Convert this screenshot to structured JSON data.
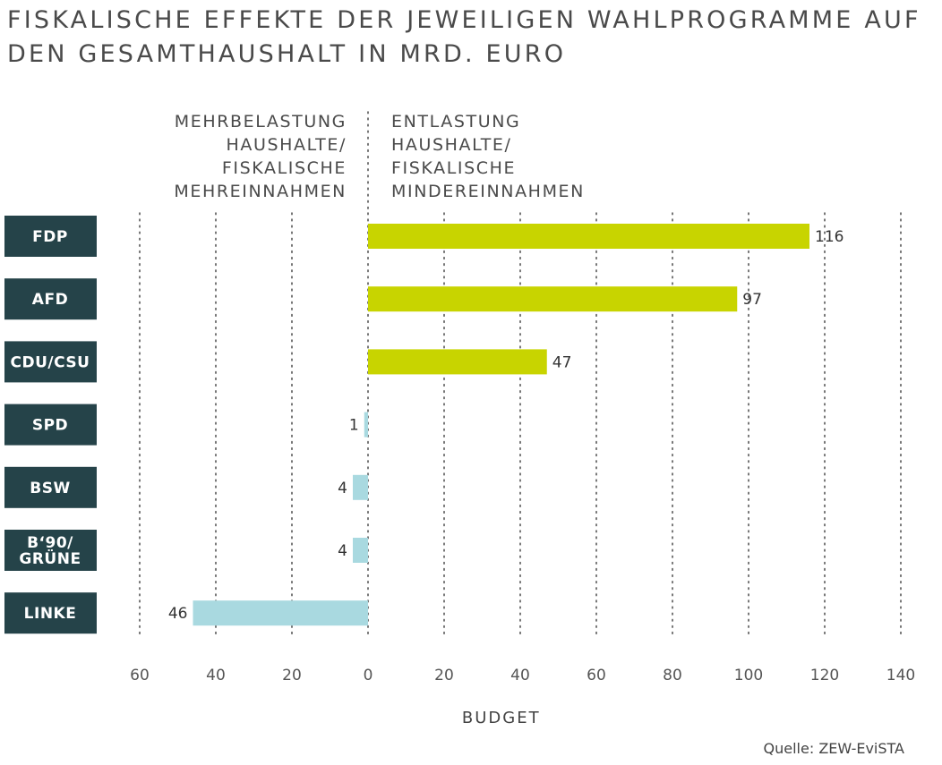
{
  "chart_data": {
    "type": "bar",
    "orientation": "horizontal",
    "title": "FISKALISCHE EFFEKTE DER JEWEILIGEN WAHLPROGRAMME AUF DEN GESAMTHAUSHALT IN MRD. EURO",
    "left_side_label": "MEHRBELASTUNG HAUSHALTE/ FISKALISCHE MEHREINNAHMEN",
    "right_side_label": "ENTLASTUNG HAUSHALTE/ FISKALISCHE MINDEREINNAHMEN",
    "categories": [
      "FDP",
      "AFD",
      "CDU/CSU",
      "SPD",
      "BSW",
      "B‘90/ GRÜNE",
      "LINKE"
    ],
    "values": [
      116,
      97,
      47,
      -1,
      -4,
      -4,
      -46
    ],
    "value_labels": [
      "116",
      "97",
      "47",
      "1",
      "4",
      "4",
      "46"
    ],
    "xlabel": "BUDGET",
    "xlim": [
      -60,
      140
    ],
    "tick_values": [
      -60,
      -40,
      -20,
      0,
      20,
      40,
      60,
      80,
      100,
      120,
      140
    ],
    "tick_labels": [
      "60",
      "40",
      "20",
      "0",
      "20",
      "40",
      "60",
      "80",
      "100",
      "120",
      "140"
    ],
    "grid": "vertical dotted",
    "positive_color": "#c8d400",
    "negative_color": "#a9d9e0",
    "label_box_color": "#254349",
    "source": "Quelle: ZEW-EviSTA"
  }
}
